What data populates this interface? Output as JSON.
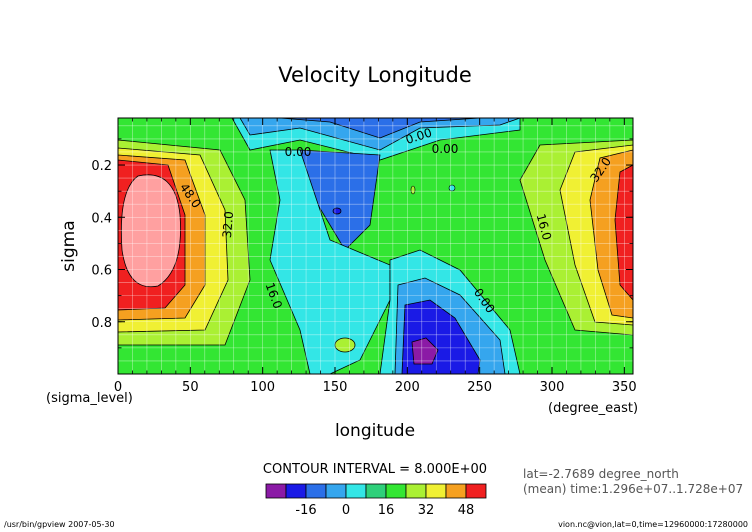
{
  "chart_data": {
    "type": "contour",
    "title": "Velocity Longitude",
    "xlabel": "longitude",
    "ylabel": "sigma",
    "x_unit": "(degree_east)",
    "y_unit": "(sigma_level)",
    "xlim": [
      0,
      356
    ],
    "ylim": [
      1.0,
      0.02
    ],
    "y_reversed": true,
    "x_ticks": [
      "0",
      "50",
      "100",
      "150",
      "200",
      "250",
      "300",
      "350"
    ],
    "y_ticks": [
      "0.2",
      "0.4",
      "0.6",
      "0.8"
    ],
    "contour_interval": "CONTOUR INTERVAL = 8.000E+00",
    "contour_labels": [
      "0.00",
      "0.00",
      "0.00",
      "0.00",
      "48.0",
      "32.0",
      "16.0",
      "16.0",
      "32.0"
    ],
    "info_lat": "lat=-2.7689 degree_north",
    "info_time": "(mean) time:1.296e+07..1.728e+07",
    "footer_left": "/usr/bin/gpview  2007-05-30",
    "footer_right": "vion.nc@vion,lat=0,time=12960000:17280000",
    "colorbar": {
      "tick_labels": [
        "-16",
        "0",
        "16",
        "32",
        "48"
      ],
      "levels": [
        -32,
        -24,
        -16,
        -8,
        0,
        8,
        16,
        24,
        32,
        40,
        48,
        56
      ],
      "colors": [
        "#8b1aa6",
        "#1a1ae6",
        "#2b6fe8",
        "#35a6ee",
        "#33e6e6",
        "#2ed07a",
        "#33e633",
        "#aaf033",
        "#f0f033",
        "#f5a020",
        "#f02020",
        "#ffa0a0"
      ]
    },
    "grid": true
  }
}
